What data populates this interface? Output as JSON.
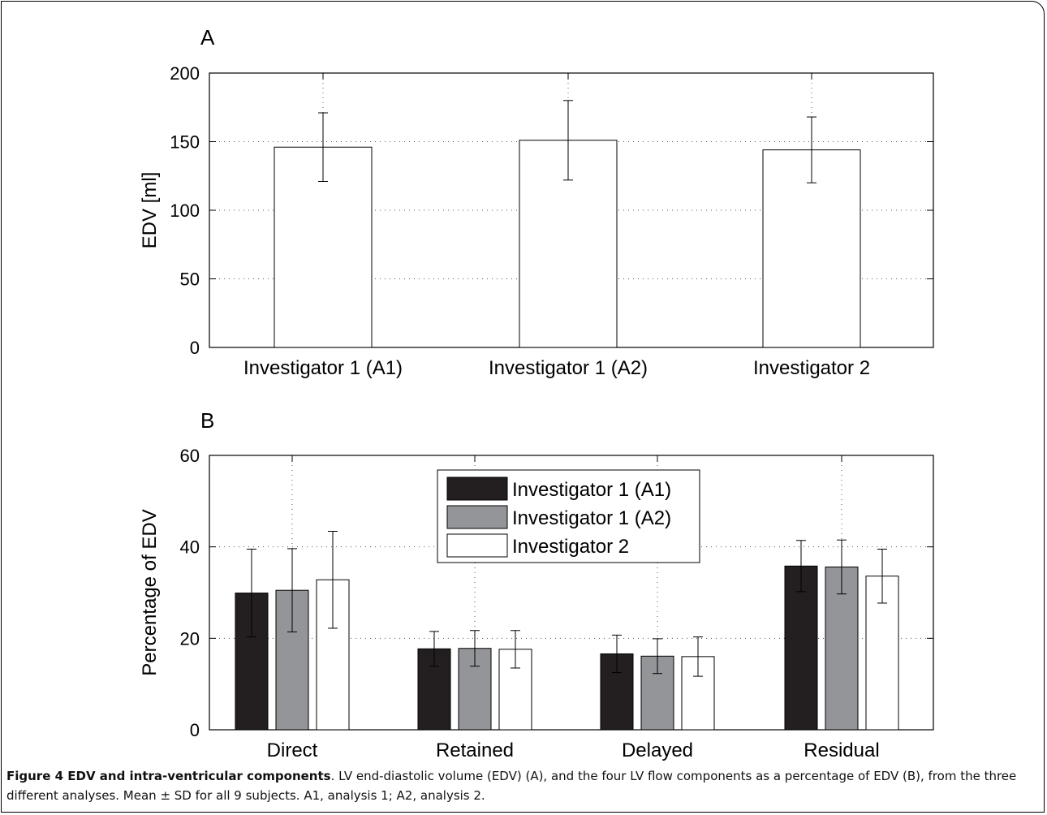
{
  "caption": {
    "title": "Figure 4 EDV and intra-ventricular components",
    "text": ". LV end-diastolic volume (EDV) (A), and the four LV flow components as a percentage of EDV (B), from the three different analyses. Mean ± SD for all 9 subjects. A1, analysis 1; A2, analysis 2."
  },
  "colors": {
    "Investigator 1 (A1)": "#231f20",
    "Investigator 1 (A2)": "#939598",
    "Investigator 2": "#ffffff"
  },
  "chart_data": [
    {
      "panel": "A",
      "type": "bar",
      "title": "",
      "ylabel": "EDV [ml]",
      "xlabel": "",
      "ylim": [
        0,
        200
      ],
      "yticks": [
        0,
        50,
        100,
        150,
        200
      ],
      "grid": true,
      "categories": [
        "Investigator 1 (A1)",
        "Investigator 1 (A2)",
        "Investigator 2"
      ],
      "values": [
        146,
        151,
        144
      ],
      "errors": [
        25,
        29,
        24
      ]
    },
    {
      "panel": "B",
      "type": "bar",
      "title": "",
      "ylabel": "Percentage of EDV",
      "xlabel": "",
      "ylim": [
        0,
        60
      ],
      "yticks": [
        0,
        20,
        40,
        60
      ],
      "grid": true,
      "legend_position": "top-center",
      "categories": [
        "Direct",
        "Retained",
        "Delayed",
        "Residual"
      ],
      "series": [
        {
          "name": "Investigator 1 (A1)",
          "values": [
            29.9,
            17.7,
            16.6,
            35.8
          ],
          "errors": [
            9.6,
            3.8,
            4.1,
            5.6
          ]
        },
        {
          "name": "Investigator 1 (A2)",
          "values": [
            30.5,
            17.8,
            16.1,
            35.6
          ],
          "errors": [
            9.1,
            3.9,
            3.8,
            5.9
          ]
        },
        {
          "name": "Investigator 2",
          "values": [
            32.8,
            17.6,
            16.0,
            33.6
          ],
          "errors": [
            10.6,
            4.1,
            4.3,
            5.9
          ]
        }
      ]
    }
  ]
}
